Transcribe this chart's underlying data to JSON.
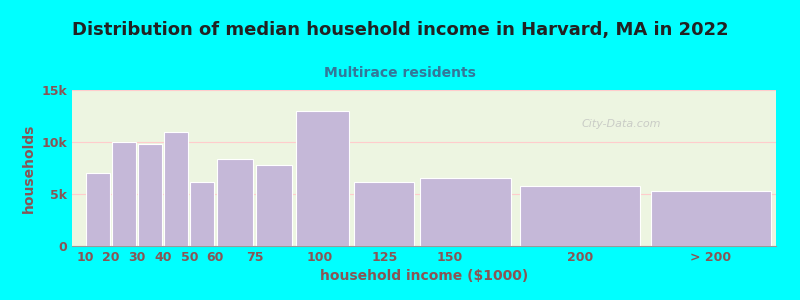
{
  "title": "Distribution of median household income in Harvard, MA in 2022",
  "subtitle": "Multirace residents",
  "xlabel": "household income ($1000)",
  "ylabel": "households",
  "background_color": "#00FFFF",
  "plot_bg_color": "#edf5e1",
  "bar_color": "#c5b8d8",
  "bar_edge_color": "#ffffff",
  "left_edges": [
    10,
    20,
    30,
    40,
    50,
    60,
    75,
    90,
    112,
    137,
    175,
    225
  ],
  "widths": [
    10,
    10,
    10,
    10,
    10,
    15,
    15,
    22,
    25,
    38,
    50,
    50
  ],
  "values": [
    7000,
    10000,
    9800,
    11000,
    6200,
    8400,
    7800,
    13000,
    6200,
    6500,
    5800,
    5300
  ],
  "xtick_positions": [
    10,
    20,
    30,
    40,
    50,
    60,
    75,
    100,
    125,
    150,
    200,
    250
  ],
  "xtick_labels": [
    "10",
    "20",
    "30",
    "40",
    "50",
    "60",
    "75",
    "100",
    "125",
    "150",
    "200",
    "> 200"
  ],
  "ylim": [
    0,
    15000
  ],
  "xlim": [
    5,
    275
  ],
  "yticks": [
    0,
    5000,
    10000,
    15000
  ],
  "ytick_labels": [
    "0",
    "5k",
    "10k",
    "15k"
  ],
  "title_fontsize": 13,
  "subtitle_fontsize": 10,
  "subtitle_color": "#337799",
  "axis_label_fontsize": 10,
  "tick_fontsize": 9,
  "title_color": "#222222",
  "tick_color": "#885555",
  "grid_color": "#ffcccc",
  "watermark_text": "City-Data.com",
  "watermark_color": "#bbbbbb"
}
